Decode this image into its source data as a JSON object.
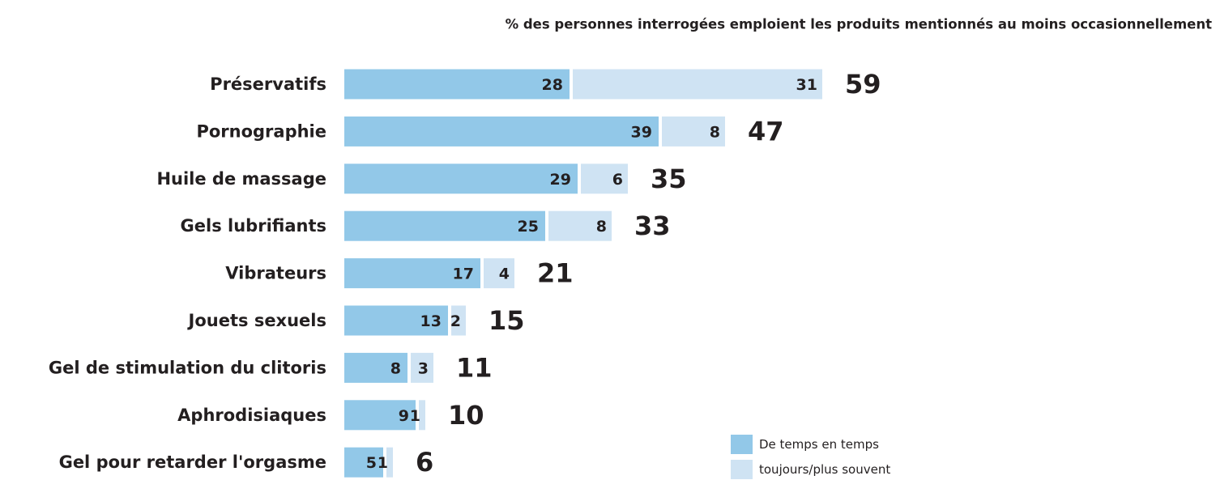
{
  "chart_data": {
    "type": "stacked-bar-horizontal",
    "title": "% des personnes interrogées emploient les produits mentionnés au moins occasionnellement",
    "categories": [
      "Préservatifs",
      "Pornographie",
      "Huile de massage",
      "Gels lubrifiants",
      "Vibrateurs",
      "Jouets sexuels",
      "Gel de stimulation du clitoris",
      "Aphrodisiaques",
      "Gel pour retarder l'orgasme"
    ],
    "series": [
      {
        "name": "De temps en temps",
        "color": "#92c8e8",
        "values": [
          28,
          39,
          29,
          25,
          17,
          13,
          8,
          9,
          5
        ]
      },
      {
        "name": "toujours/plus souvent",
        "color": "#cfe3f3",
        "values": [
          31,
          8,
          6,
          8,
          4,
          2,
          3,
          1,
          1
        ]
      }
    ],
    "totals": [
      59,
      47,
      35,
      33,
      21,
      15,
      11,
      10,
      6
    ]
  }
}
